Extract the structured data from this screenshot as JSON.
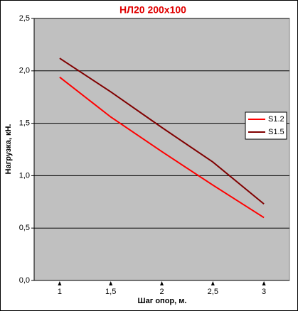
{
  "chart_data": {
    "type": "line",
    "title": "НЛ20 200x100",
    "x_label": "Шаг опор, м.",
    "y_label": "Нагрузка, кН.",
    "x": [
      1,
      1.5,
      2,
      2.5,
      3
    ],
    "series": [
      {
        "name": "S1.2",
        "color": "#ff0000",
        "values": [
          1.94,
          1.56,
          1.23,
          0.91,
          0.6
        ]
      },
      {
        "name": "S1.5",
        "color": "#800000",
        "values": [
          2.12,
          1.8,
          1.46,
          1.13,
          0.73
        ]
      }
    ],
    "xlim": [
      0.75,
      3.25
    ],
    "xticks": [
      1,
      {
        "value": 1.5,
        "label": "1,5"
      },
      2,
      {
        "value": 2.5,
        "label": "2,5"
      },
      3
    ],
    "ylim": [
      0,
      2.5
    ],
    "yticks": [
      {
        "value": 0,
        "label": "0,0"
      },
      {
        "value": 0.5,
        "label": "0,5"
      },
      {
        "value": 1,
        "label": "1,0"
      },
      {
        "value": 1.5,
        "label": "1,5"
      },
      {
        "value": 2,
        "label": "2,0"
      },
      {
        "value": 2.5,
        "label": "2,5"
      }
    ],
    "grid": true,
    "legend": "right",
    "plot_background": "#c0c0c0"
  }
}
